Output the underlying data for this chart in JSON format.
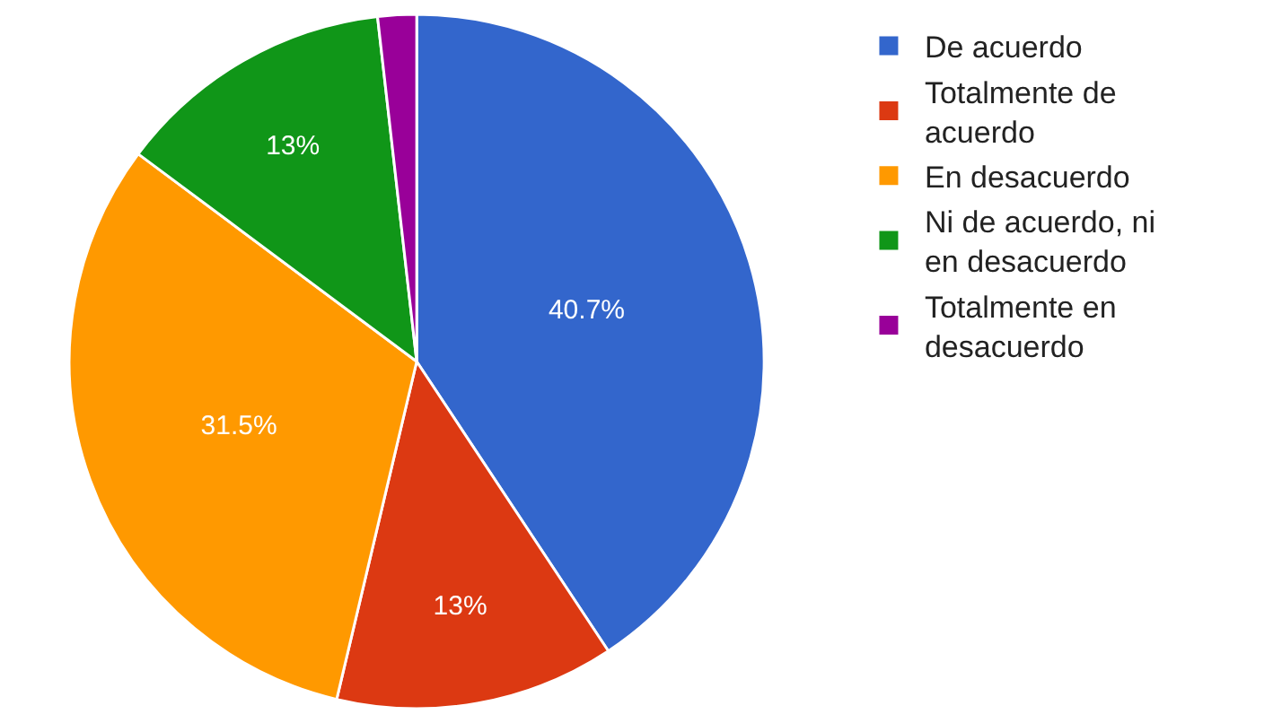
{
  "chart_data": {
    "type": "pie",
    "categories": [
      "De acuerdo",
      "Totalmente de acuerdo",
      "En desacuerdo",
      "Ni de acuerdo, ni en desacuerdo",
      "Totalmente en desacuerdo"
    ],
    "values": [
      40.7,
      13,
      31.5,
      13,
      1.8
    ],
    "colors": [
      "#3366cc",
      "#dc3912",
      "#ff9900",
      "#109618",
      "#990099"
    ],
    "value_labels": [
      "40.7%",
      "13%",
      "31.5%",
      "13%",
      null
    ],
    "legend": "right"
  }
}
